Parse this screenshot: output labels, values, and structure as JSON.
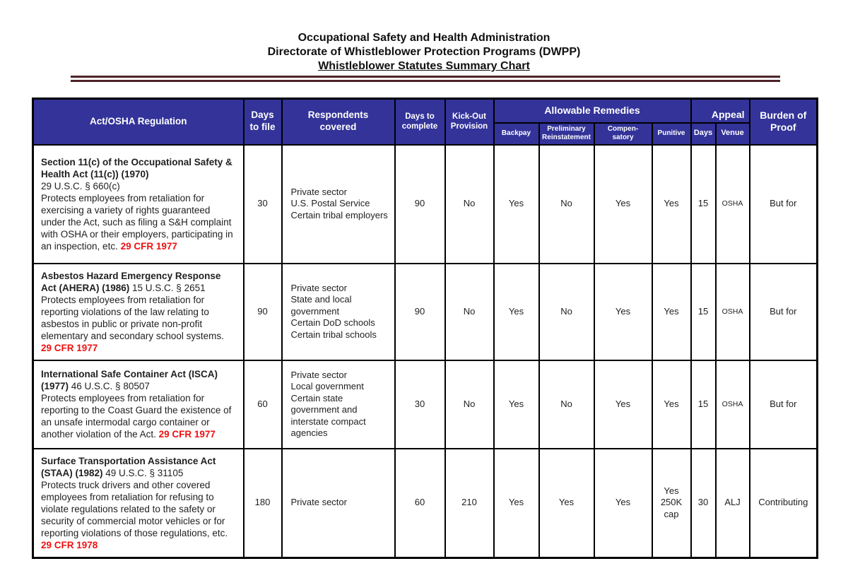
{
  "title": {
    "line1": "Occupational Safety and Health Administration",
    "line2": "Directorate of Whistleblower Protection Programs (DWPP)",
    "line3": "Whistleblower Statutes Summary Chart"
  },
  "colors": {
    "header_bg": "#333399",
    "divider_rule": "#4d2228",
    "cfr_red": "#ee1111",
    "table_border": "#000000"
  },
  "table": {
    "headers": {
      "act": "Act/OSHA Regulation",
      "days_to_file": "Days\nto file",
      "respondents": "Respondents\ncovered",
      "days_to_complete": "Days to\ncomplete",
      "kick_out": "Kick-Out\nProvision",
      "allowable_remedies": "Allowable Remedies",
      "backpay": "Backpay",
      "preliminary_reinstatement": "Preliminary\nReinstatement",
      "compensatory": "Compen-\nsatory",
      "punitive": "Punitive",
      "appeal": "Appeal",
      "appeal_days": "Days",
      "appeal_venue": "Venue",
      "burden": "Burden of\nProof"
    },
    "rows": [
      {
        "act": [
          {
            "s": "bold",
            "t": "Section 11(c) of the Occupational Safety & Health Act (11(c)) (1970)\n"
          },
          {
            "s": "normal",
            "t": "29 U.S.C. § 660(c)\nProtects employees from retaliation for exercising a variety of rights guaranteed under the Act, such as filing a S&H complaint with OSHA or their employers, participating in an inspection, etc. "
          },
          {
            "s": "cfr",
            "t": "29 CFR 1977"
          }
        ],
        "days_to_file": "30",
        "respondents": "Private sector\nU.S. Postal Service\nCertain tribal employers",
        "days_to_complete": "90",
        "kick_out": "No",
        "backpay": "Yes",
        "preliminary_reinstatement": "No",
        "compensatory": "Yes",
        "punitive": "Yes",
        "appeal_days": "15",
        "appeal_venue": "OSHA",
        "burden": "But for"
      },
      {
        "act": [
          {
            "s": "bold",
            "t": "Asbestos Hazard Emergency Response Act (AHERA) (1986) "
          },
          {
            "s": "normal",
            "t": "15 U.S.C. § 2651\nProtects employees from retaliation for reporting violations of the law relating to asbestos in public or private non-profit elementary and secondary school systems.\n"
          },
          {
            "s": "cfr",
            "t": "29 CFR 1977"
          }
        ],
        "days_to_file": "90",
        "respondents": "Private sector\nState and local government\nCertain DoD schools\nCertain tribal schools",
        "days_to_complete": "90",
        "kick_out": "No",
        "backpay": "Yes",
        "preliminary_reinstatement": "No",
        "compensatory": "Yes",
        "punitive": "Yes",
        "appeal_days": "15",
        "appeal_venue": "OSHA",
        "burden": "But for"
      },
      {
        "act": [
          {
            "s": "bold",
            "t": "International Safe Container Act (ISCA) (1977) "
          },
          {
            "s": "normal",
            "t": "46 U.S.C. § 80507\nProtects employees from retaliation for reporting to the Coast Guard the existence of an unsafe intermodal cargo container or another violation of the Act. "
          },
          {
            "s": "cfr",
            "t": "29 CFR 1977"
          }
        ],
        "days_to_file": "60",
        "respondents": "Private sector\nLocal government\nCertain state government and interstate compact agencies",
        "days_to_complete": "30",
        "kick_out": "No",
        "backpay": "Yes",
        "preliminary_reinstatement": "No",
        "compensatory": "Yes",
        "punitive": "Yes",
        "appeal_days": "15",
        "appeal_venue": "OSHA",
        "burden": "But for"
      },
      {
        "act": [
          {
            "s": "bold",
            "t": "Surface Transportation Assistance Act (STAA) (1982) "
          },
          {
            "s": "normal",
            "t": "49 U.S.C. § 31105\nProtects truck drivers and other covered employees from retaliation for refusing to violate regulations related to the safety or security of commercial motor vehicles or for reporting violations of those regulations, etc.\n"
          },
          {
            "s": "cfr",
            "t": "29 CFR 1978"
          }
        ],
        "days_to_file": "180",
        "respondents": "Private sector",
        "days_to_complete": "60",
        "kick_out": "210",
        "backpay": "Yes",
        "preliminary_reinstatement": "Yes",
        "compensatory": "Yes",
        "punitive": "Yes\n250K\ncap",
        "appeal_days": "30",
        "appeal_venue": "ALJ",
        "burden": "Contributing"
      }
    ]
  }
}
